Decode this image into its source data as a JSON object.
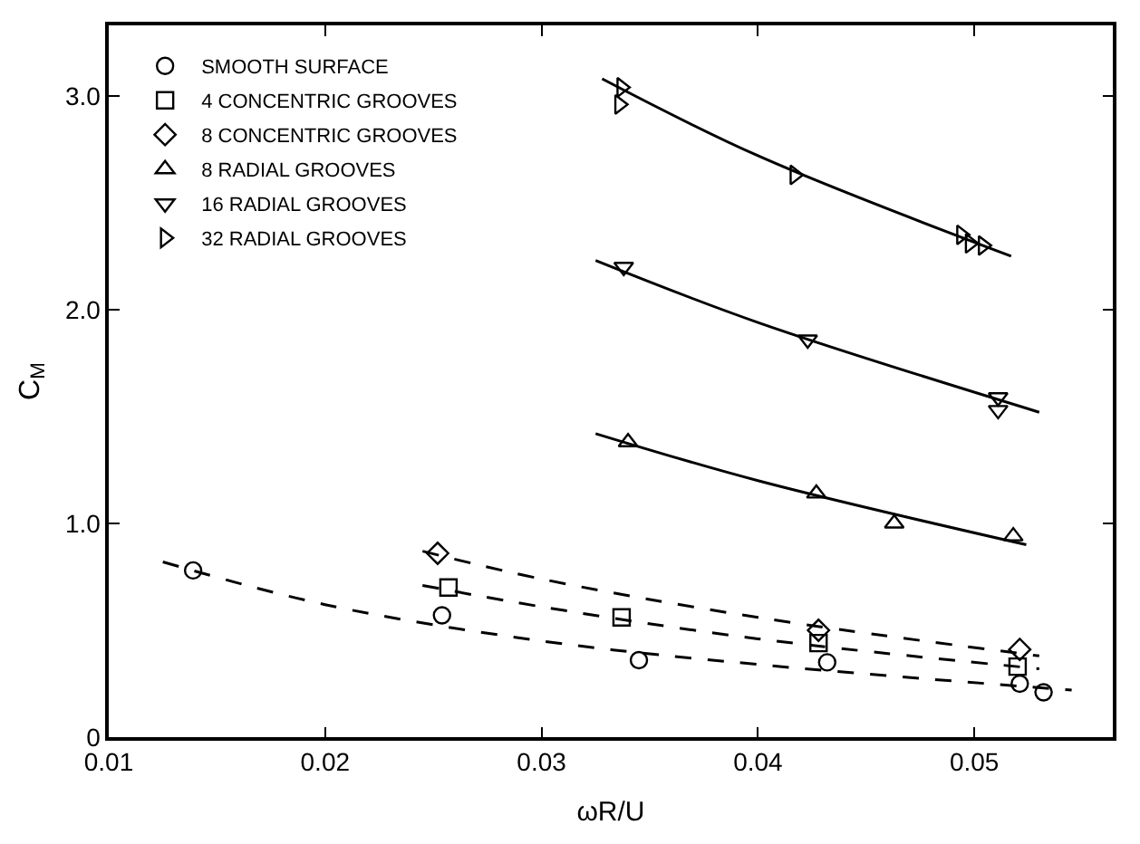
{
  "chart_data": {
    "type": "scatter",
    "xlabel": "ωR/U",
    "ylabel": "C$_{M}$",
    "xlim": [
      0.01,
      0.0564
    ],
    "ylim": [
      0,
      3.33
    ],
    "xticks": [
      0.01,
      0.02,
      0.03,
      0.04,
      0.05
    ],
    "yticks": [
      0,
      {
        "value": 1,
        "label": "1.0"
      },
      {
        "value": 2,
        "label": "2.0"
      },
      {
        "value": 3,
        "label": "3.0"
      }
    ],
    "legend": "top left",
    "series": [
      {
        "name": "SMOOTH SURFACE",
        "color": "#000000",
        "marker": "circle",
        "x": [
          0.0139,
          0.0254,
          0.0345,
          0.0432,
          0.0521,
          0.0532
        ],
        "values": [
          0.78,
          0.57,
          0.36,
          0.35,
          0.25,
          0.21
        ]
      },
      {
        "name": "4 CONCENTRIC GROOVES",
        "color": "#000000",
        "marker": "square",
        "x": [
          0.0257,
          0.0337,
          0.0428,
          0.052
        ],
        "values": [
          0.7,
          0.56,
          0.44,
          0.33
        ]
      },
      {
        "name": "8 CONCENTRIC GROOVES",
        "color": "#000000",
        "marker": "diamond",
        "x": [
          0.0252,
          0.0428,
          0.0521
        ],
        "values": [
          0.86,
          0.5,
          0.41
        ]
      },
      {
        "name": "8 RADIAL GROOVES",
        "color": "#000000",
        "marker": "triangle",
        "x": [
          0.034,
          0.0427,
          0.0463,
          0.0518
        ],
        "values": [
          1.38,
          1.14,
          1.0,
          0.94
        ]
      },
      {
        "name": "16 RADIAL GROOVES",
        "color": "#000000",
        "marker": "triangle-down",
        "x": [
          0.0338,
          0.0423,
          0.0511,
          0.0511
        ],
        "values": [
          2.2,
          1.86,
          1.59,
          1.53
        ]
      },
      {
        "name": "32 RADIAL GROOVES",
        "color": "#000000",
        "marker": "triangle-right",
        "x": [
          0.0337,
          0.0336,
          0.0417,
          0.0494,
          0.0498,
          0.0504
        ],
        "values": [
          3.04,
          2.96,
          2.63,
          2.35,
          2.31,
          2.3
        ]
      },
      {
        "type": "line",
        "color": "#000000",
        "marker": "none",
        "line_style": "dashed",
        "x": [
          0.0125,
          0.02,
          0.03,
          0.04,
          0.0545
        ],
        "values": [
          0.82,
          0.62,
          0.45,
          0.34,
          0.22
        ]
      },
      {
        "type": "line",
        "color": "#000000",
        "marker": "none",
        "line_style": "dashed",
        "x": [
          0.0245,
          0.03,
          0.04,
          0.053
        ],
        "values": [
          0.71,
          0.61,
          0.46,
          0.32
        ]
      },
      {
        "type": "line",
        "color": "#000000",
        "marker": "none",
        "line_style": "dashed",
        "x": [
          0.0245,
          0.03,
          0.04,
          0.053
        ],
        "values": [
          0.87,
          0.74,
          0.56,
          0.38
        ]
      },
      {
        "type": "line",
        "color": "#000000",
        "marker": "none",
        "line_style": "solid",
        "x": [
          0.0325,
          0.04,
          0.0524
        ],
        "values": [
          1.42,
          1.2,
          0.9
        ]
      },
      {
        "type": "line",
        "color": "#000000",
        "marker": "none",
        "line_style": "solid",
        "x": [
          0.0325,
          0.04,
          0.053
        ],
        "values": [
          2.23,
          1.94,
          1.52
        ]
      },
      {
        "type": "line",
        "color": "#000000",
        "marker": "none",
        "line_style": "solid",
        "x": [
          0.0328,
          0.04,
          0.0517
        ],
        "values": [
          3.08,
          2.72,
          2.25
        ]
      }
    ]
  }
}
